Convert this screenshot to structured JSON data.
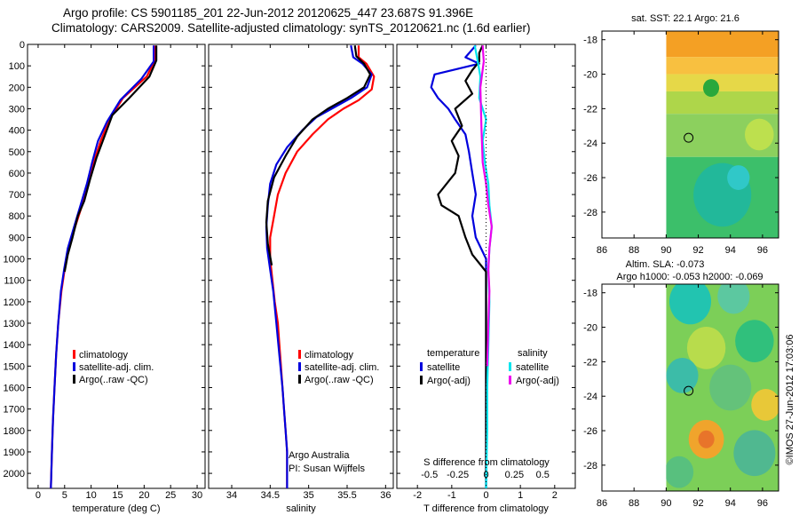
{
  "header": {
    "line1": "Argo profile: CS 5901185_201 22-Jun-2012 20120625_447 23.687S 91.396E",
    "line2": "Climatology: CARS2009. Satellite-adjusted climatology: synTS_20120621.nc (1.6d earlier)"
  },
  "colors": {
    "climatology": "#ff0000",
    "satellite": "#0000dd",
    "argo": "#000000",
    "sal_satellite": "#00e5ee",
    "sal_argo": "#ee00ee"
  },
  "depth_ticks": [
    "0",
    "100",
    "200",
    "300",
    "400",
    "500",
    "600",
    "700",
    "800",
    "900",
    "1000",
    "1100",
    "1200",
    "1300",
    "1400",
    "1500",
    "1600",
    "1700",
    "1800",
    "1900",
    "2000"
  ],
  "chart_data": [
    {
      "type": "line",
      "id": "temperature",
      "xlabel": "temperature (deg C)",
      "ylabel": "depth",
      "xlim": [
        -2,
        31.5
      ],
      "ylim": [
        2070,
        0
      ],
      "xticks": [
        "0",
        "5",
        "10",
        "15",
        "20",
        "25",
        "30"
      ],
      "legend": [
        "climatology",
        "satellite-adj. clim.",
        "Argo(..raw -QC)"
      ],
      "series": [
        {
          "name": "climatology",
          "color": "red",
          "points": [
            [
              22,
              5
            ],
            [
              22,
              75
            ],
            [
              20.5,
              150
            ],
            [
              16,
              250
            ],
            [
              13.5,
              350
            ],
            [
              11.8,
              450
            ],
            [
              10.5,
              550
            ],
            [
              9.5,
              650
            ],
            [
              8.3,
              750
            ],
            [
              7,
              850
            ],
            [
              5.7,
              950
            ],
            [
              5,
              1050
            ],
            [
              4.4,
              1150
            ],
            [
              3.8,
              1300
            ],
            [
              3.4,
              1450
            ],
            [
              3.1,
              1600
            ],
            [
              2.8,
              1750
            ],
            [
              2.6,
              1900
            ],
            [
              2.4,
              2070
            ]
          ]
        },
        {
          "name": "satellite-adj. clim.",
          "color": "blue",
          "points": [
            [
              21.8,
              5
            ],
            [
              21.8,
              80
            ],
            [
              19.5,
              160
            ],
            [
              15.5,
              260
            ],
            [
              13,
              360
            ],
            [
              11.3,
              450
            ],
            [
              10.2,
              550
            ],
            [
              9.2,
              650
            ],
            [
              8,
              750
            ],
            [
              6.8,
              850
            ],
            [
              5.6,
              950
            ],
            [
              4.9,
              1050
            ],
            [
              4.3,
              1150
            ],
            [
              3.8,
              1300
            ],
            [
              3.4,
              1450
            ],
            [
              3.1,
              1600
            ],
            [
              2.8,
              1750
            ],
            [
              2.6,
              1900
            ],
            [
              2.4,
              2070
            ]
          ]
        },
        {
          "name": "Argo(..raw -QC)",
          "color": "black",
          "points": [
            [
              22.3,
              5
            ],
            [
              22.3,
              75
            ],
            [
              21,
              150
            ],
            [
              17.2,
              250
            ],
            [
              14,
              330
            ],
            [
              12.5,
              430
            ],
            [
              11,
              530
            ],
            [
              9.8,
              630
            ],
            [
              8.7,
              730
            ],
            [
              7.5,
              800
            ],
            [
              6.5,
              900
            ],
            [
              5.6,
              980
            ],
            [
              5,
              1060
            ]
          ]
        }
      ]
    },
    {
      "type": "line",
      "id": "salinity",
      "xlabel": "salinity",
      "ylabel": "depth",
      "xlim": [
        33.7,
        36.1
      ],
      "ylim": [
        2070,
        0
      ],
      "xticks": [
        "34",
        "34.5",
        "35",
        "35.5",
        "36"
      ],
      "legend": [
        "climatology",
        "satellite-adj. clim.",
        "Argo(..raw -QC)"
      ],
      "annotation": [
        "Argo Australia",
        "PI: Susan Wijffels"
      ],
      "series": [
        {
          "name": "climatology",
          "color": "red",
          "points": [
            [
              35.65,
              5
            ],
            [
              35.65,
              60
            ],
            [
              35.75,
              90
            ],
            [
              35.85,
              150
            ],
            [
              35.82,
              210
            ],
            [
              35.65,
              260
            ],
            [
              35.45,
              300
            ],
            [
              35.25,
              350
            ],
            [
              35.05,
              420
            ],
            [
              34.85,
              500
            ],
            [
              34.7,
              600
            ],
            [
              34.6,
              700
            ],
            [
              34.55,
              800
            ],
            [
              34.5,
              900
            ],
            [
              34.5,
              1000
            ],
            [
              34.53,
              1100
            ],
            [
              34.56,
              1200
            ],
            [
              34.6,
              1300
            ],
            [
              34.62,
              1400
            ],
            [
              34.64,
              1500
            ],
            [
              34.66,
              1600
            ],
            [
              34.68,
              1700
            ],
            [
              34.7,
              1800
            ],
            [
              34.72,
              1900
            ],
            [
              34.72,
              2070
            ]
          ]
        },
        {
          "name": "satellite-adj. clim.",
          "color": "blue",
          "points": [
            [
              35.55,
              5
            ],
            [
              35.58,
              60
            ],
            [
              35.7,
              90
            ],
            [
              35.82,
              140
            ],
            [
              35.76,
              200
            ],
            [
              35.55,
              250
            ],
            [
              35.35,
              290
            ],
            [
              35.1,
              340
            ],
            [
              34.92,
              400
            ],
            [
              34.72,
              480
            ],
            [
              34.58,
              560
            ],
            [
              34.5,
              650
            ],
            [
              34.47,
              750
            ],
            [
              34.45,
              850
            ],
            [
              34.46,
              950
            ],
            [
              34.5,
              1050
            ],
            [
              34.54,
              1150
            ],
            [
              34.58,
              1300
            ],
            [
              34.62,
              1450
            ],
            [
              34.66,
              1600
            ],
            [
              34.68,
              1700
            ],
            [
              34.7,
              1800
            ],
            [
              34.72,
              1900
            ],
            [
              34.72,
              2070
            ]
          ]
        },
        {
          "name": "Argo(..raw -QC)",
          "color": "black",
          "points": [
            [
              35.6,
              5
            ],
            [
              35.62,
              55
            ],
            [
              35.72,
              90
            ],
            [
              35.8,
              140
            ],
            [
              35.72,
              200
            ],
            [
              35.5,
              250
            ],
            [
              35.25,
              300
            ],
            [
              35.05,
              350
            ],
            [
              34.85,
              430
            ],
            [
              34.7,
              520
            ],
            [
              34.55,
              620
            ],
            [
              34.47,
              730
            ],
            [
              34.45,
              830
            ],
            [
              34.47,
              930
            ],
            [
              34.52,
              1030
            ]
          ]
        }
      ]
    },
    {
      "type": "line",
      "id": "differences",
      "xlabel": "T difference from climatology",
      "top_label": "S difference from climatology",
      "ylabel": "depth",
      "xlim": [
        -2.6,
        2.6
      ],
      "ylim": [
        2070,
        0
      ],
      "xticks": [
        "-2",
        "-1",
        "0",
        "1",
        "2"
      ],
      "sticks": [
        "-0.5",
        "-0.25",
        "0",
        "0.25",
        "0.5"
      ],
      "s_scale": 3.3,
      "legend_headers": [
        "temperature",
        "salinity"
      ],
      "legend": [
        "satellite",
        "Argo(-adj)",
        "satellite",
        "Argo(-adj)"
      ],
      "series": [
        {
          "name": "temperature satellite",
          "color": "blue",
          "points": [
            [
              -0.3,
              5
            ],
            [
              -0.6,
              60
            ],
            [
              -0.2,
              90
            ],
            [
              -1.5,
              140
            ],
            [
              -1.6,
              200
            ],
            [
              -1.4,
              250
            ],
            [
              -1.1,
              300
            ],
            [
              -0.9,
              350
            ],
            [
              -0.6,
              420
            ],
            [
              -0.5,
              500
            ],
            [
              -0.4,
              600
            ],
            [
              -0.3,
              700
            ],
            [
              -0.4,
              800
            ],
            [
              -0.3,
              900
            ],
            [
              0,
              1000
            ],
            [
              0,
              1100
            ],
            [
              0,
              1300
            ],
            [
              0,
              1500
            ],
            [
              0,
              1700
            ],
            [
              0,
              1900
            ],
            [
              0,
              2070
            ]
          ]
        },
        {
          "name": "temperature Argo(-adj)",
          "color": "black",
          "points": [
            [
              -0.1,
              5
            ],
            [
              -0.2,
              40
            ],
            [
              -0.2,
              80
            ],
            [
              -0.4,
              120
            ],
            [
              -0.6,
              170
            ],
            [
              -0.4,
              230
            ],
            [
              -0.9,
              300
            ],
            [
              -0.7,
              380
            ],
            [
              -1.0,
              450
            ],
            [
              -0.8,
              520
            ],
            [
              -0.9,
              600
            ],
            [
              -1.4,
              700
            ],
            [
              -1.3,
              750
            ],
            [
              -0.8,
              800
            ],
            [
              -0.6,
              900
            ],
            [
              -0.4,
              980
            ],
            [
              0,
              1060
            ],
            [
              0,
              1300
            ],
            [
              0,
              1500
            ],
            [
              0,
              1700
            ],
            [
              0,
              1900
            ],
            [
              0,
              2070
            ]
          ]
        },
        {
          "name": "salinity satellite",
          "color": "cyan",
          "points": [
            [
              -0.1,
              5
            ],
            [
              -0.08,
              60
            ],
            [
              -0.05,
              150
            ],
            [
              -0.06,
              250
            ],
            [
              0,
              350
            ],
            [
              -0.03,
              450
            ],
            [
              -0.01,
              550
            ],
            [
              0.02,
              650
            ],
            [
              0.03,
              750
            ],
            [
              0.05,
              850
            ],
            [
              0.03,
              950
            ],
            [
              0.02,
              1050
            ],
            [
              0.03,
              1200
            ],
            [
              0.02,
              1400
            ],
            [
              0.01,
              1600
            ],
            [
              0.01,
              1800
            ],
            [
              0,
              2070
            ]
          ]
        },
        {
          "name": "salinity Argo(-adj)",
          "color": "magenta",
          "points": [
            [
              -0.03,
              5
            ],
            [
              -0.02,
              80
            ],
            [
              -0.05,
              200
            ],
            [
              -0.04,
              400
            ],
            [
              -0.03,
              550
            ],
            [
              0,
              650
            ],
            [
              0.02,
              750
            ],
            [
              0.05,
              850
            ],
            [
              0.03,
              950
            ],
            [
              0.02,
              1050
            ],
            [
              0.03,
              1150
            ],
            [
              0.02,
              1300
            ],
            [
              0.01,
              1500
            ]
          ]
        }
      ]
    },
    {
      "type": "heatmap",
      "id": "sst-map",
      "title": "sat. SST: 22.1  Argo: 21.6",
      "xlim": [
        86,
        97
      ],
      "ylim": [
        -29.5,
        -17.5
      ],
      "xticks": [
        "86",
        "88",
        "90",
        "92",
        "94",
        "96"
      ],
      "yticks": [
        "-18",
        "-20",
        "-22",
        "-24",
        "-26",
        "-28"
      ],
      "data_extent_lon": [
        90,
        97
      ],
      "argo_position": {
        "lon": 91.396,
        "lat": -23.687
      },
      "bands": [
        {
          "lat": [
            -17.5,
            -19.0
          ],
          "color": "#f4a024"
        },
        {
          "lat": [
            -19.0,
            -20.0
          ],
          "color": "#f8c040"
        },
        {
          "lat": [
            -20.0,
            -21.0
          ],
          "color": "#e6d848"
        },
        {
          "lat": [
            -21.0,
            -22.3
          ],
          "color": "#aed64a"
        },
        {
          "lat": [
            -22.3,
            -24.8
          ],
          "color": "#8cd05e"
        },
        {
          "lat": [
            -24.8,
            -29.5
          ],
          "color": "#3cbf6a"
        }
      ],
      "blobs": [
        {
          "lon": 93.5,
          "lat": -27.0,
          "r": 1.8,
          "color": "#22b89a"
        },
        {
          "lon": 95.8,
          "lat": -23.5,
          "r": 0.9,
          "color": "#bde04e"
        },
        {
          "lon": 92.8,
          "lat": -20.8,
          "r": 0.5,
          "color": "#2aa83c"
        },
        {
          "lon": 94.5,
          "lat": -26.0,
          "r": 0.7,
          "color": "#30c8c8"
        }
      ]
    },
    {
      "type": "heatmap",
      "id": "sla-map",
      "title": "Altim. SLA: -0.073",
      "subtitle": "Argo h1000: -0.053 h2000: -0.069",
      "xlim": [
        86,
        97
      ],
      "ylim": [
        -29.5,
        -17.5
      ],
      "xticks": [
        "86",
        "88",
        "90",
        "92",
        "94",
        "96"
      ],
      "yticks": [
        "-18",
        "-20",
        "-22",
        "-24",
        "-26",
        "-28"
      ],
      "data_extent_lon": [
        90,
        97
      ],
      "argo_position": {
        "lon": 91.396,
        "lat": -23.687
      },
      "base_color": "#7ccf58",
      "blobs": [
        {
          "lon": 91.5,
          "lat": -18.5,
          "r": 1.3,
          "color": "#22c4b0"
        },
        {
          "lon": 94.2,
          "lat": -18.2,
          "r": 1.0,
          "color": "#5cc8a0"
        },
        {
          "lon": 92.5,
          "lat": -21.2,
          "r": 1.2,
          "color": "#b8dc4c"
        },
        {
          "lon": 95.5,
          "lat": -20.8,
          "r": 1.2,
          "color": "#30c07c"
        },
        {
          "lon": 91.0,
          "lat": -22.8,
          "r": 1.0,
          "color": "#3cbca8"
        },
        {
          "lon": 94.0,
          "lat": -23.5,
          "r": 1.3,
          "color": "#64c27a"
        },
        {
          "lon": 96.2,
          "lat": -24.5,
          "r": 0.9,
          "color": "#e8c838"
        },
        {
          "lon": 92.5,
          "lat": -26.5,
          "r": 1.1,
          "color": "#f0a42c"
        },
        {
          "lon": 92.5,
          "lat": -26.5,
          "r": 0.5,
          "color": "#e8742a"
        },
        {
          "lon": 95.5,
          "lat": -27.3,
          "r": 1.3,
          "color": "#50b890"
        },
        {
          "lon": 90.8,
          "lat": -28.4,
          "r": 0.9,
          "color": "#58c07e"
        }
      ]
    }
  ],
  "side_label": "©IMOS 27-Jun-2012 17:03:06"
}
